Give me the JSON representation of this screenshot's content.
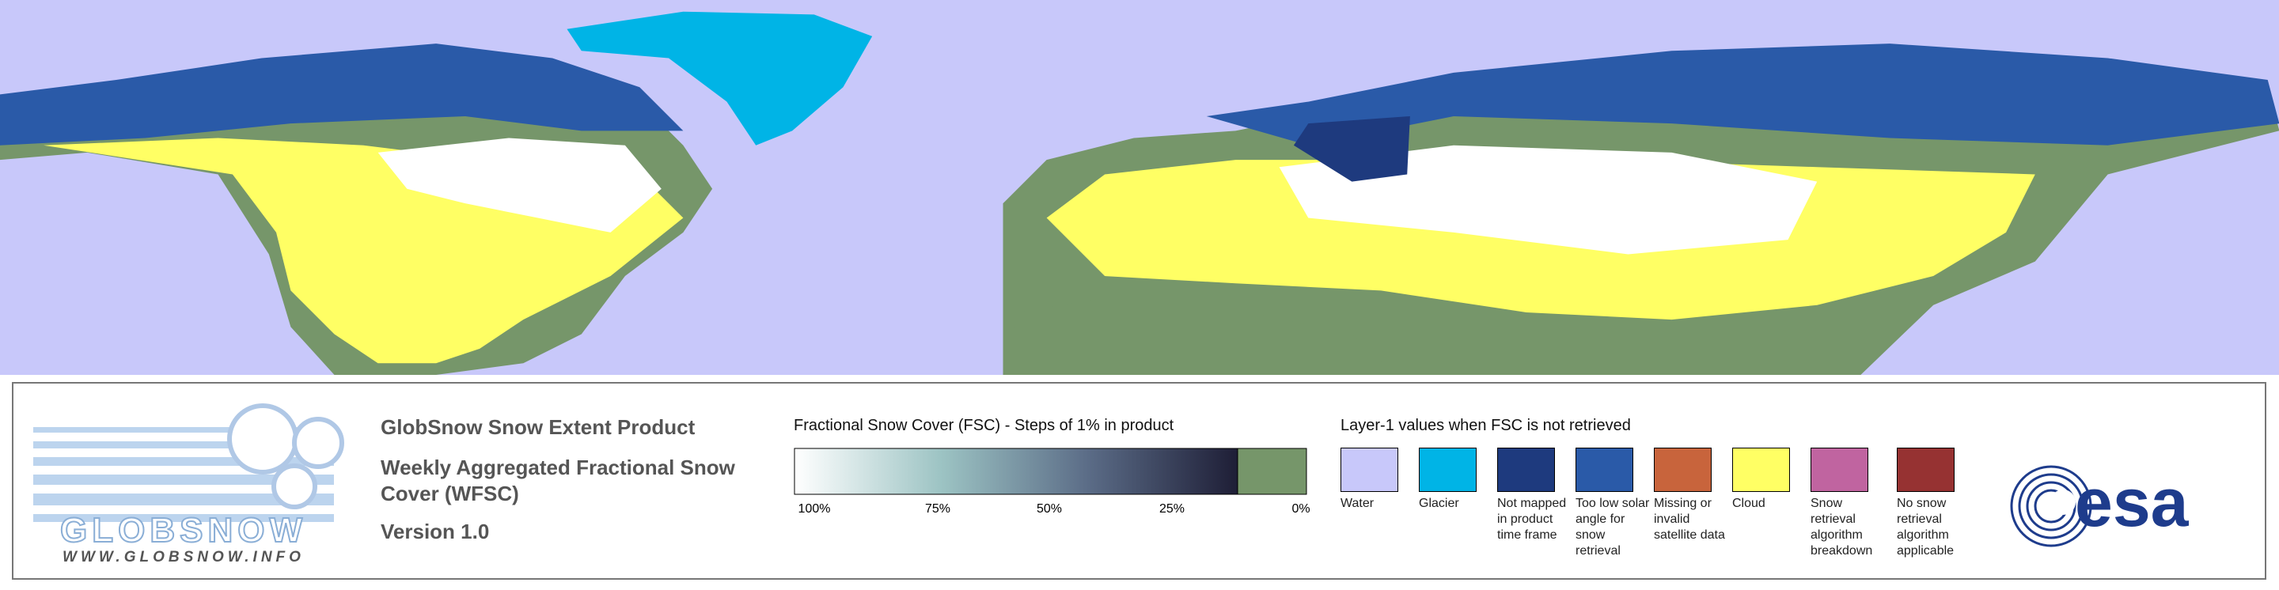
{
  "logo": {
    "name": "GLOBSNOW",
    "url": "WWW.GLOBSNOW.INFO"
  },
  "product": {
    "title": "GlobSnow Snow Extent Product",
    "subtitle": "Weekly Aggregated Fractional Snow Cover (WFSC)",
    "version": "Version 1.0"
  },
  "fsc_legend": {
    "title": "Fractional Snow Cover (FSC) - Steps of 1% in product",
    "ticks": [
      "100%",
      "75%",
      "50%",
      "25%",
      "0%"
    ],
    "gradient": [
      "#ffffff",
      "#9cc3c3",
      "#5a6b86",
      "#1e1e36"
    ],
    "no_snow_color": "#76966a"
  },
  "layer1_legend": {
    "title": "Layer-1 values when FSC is not retrieved",
    "items": [
      {
        "label": "Water",
        "color": "#c8c8fa"
      },
      {
        "label": "Glacier",
        "color": "#00b4e6"
      },
      {
        "label": "Not mapped in product time frame",
        "color": "#1e3a7e"
      },
      {
        "label": "Too low solar angle for snow retrieval",
        "color": "#2a5aa8"
      },
      {
        "label": "Missing or invalid satellite data",
        "color": "#c8643c"
      },
      {
        "label": "Cloud",
        "color": "#ffff64"
      },
      {
        "label": "Snow retrieval algorithm breakdown",
        "color": "#c064a0"
      },
      {
        "label": "No snow retrieval algorithm applicable",
        "color": "#963232"
      }
    ]
  },
  "agency": "esa"
}
